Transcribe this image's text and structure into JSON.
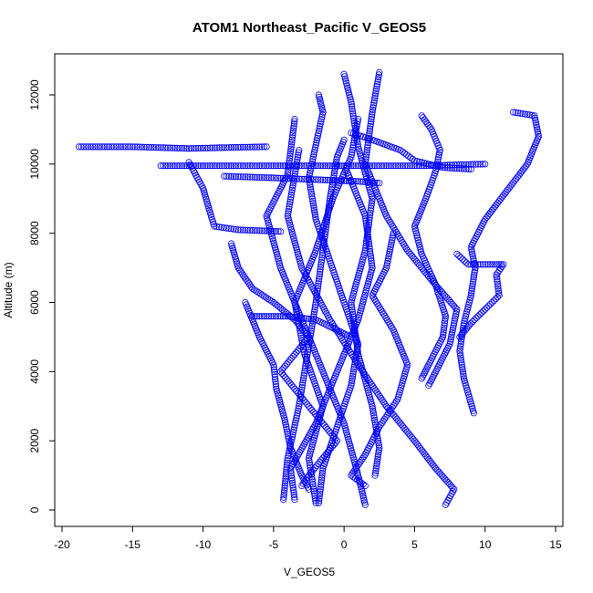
{
  "chart_data": {
    "type": "scatter",
    "title": "ATOM1 Northeast_Pacific V_GEOS5",
    "xlabel": "V_GEOS5",
    "ylabel": "Altitude (m)",
    "xlim": [
      -20,
      15
    ],
    "ylim": [
      0,
      12000
    ],
    "xticks": [
      -20,
      -15,
      -10,
      -5,
      0,
      5,
      10,
      15
    ],
    "yticks": [
      0,
      2000,
      4000,
      6000,
      8000,
      10000,
      12000
    ],
    "marker": "open-circle",
    "color": "#0000ff",
    "grid": false,
    "series": [
      {
        "points": [
          [
            -4.3,
            300
          ],
          [
            -4.0,
            1500
          ],
          [
            -3.2,
            3000
          ],
          [
            -2.6,
            4500
          ],
          [
            -2.0,
            6000
          ],
          [
            -1.5,
            7500
          ],
          [
            -1.0,
            9000
          ],
          [
            -0.5,
            10200
          ],
          [
            0.0,
            10700
          ]
        ]
      },
      {
        "points": [
          [
            -2.0,
            200
          ],
          [
            -2.5,
            1500
          ],
          [
            -1.5,
            3000
          ],
          [
            -2.8,
            4500
          ],
          [
            -3.5,
            6000
          ],
          [
            -2.0,
            7500
          ],
          [
            -0.8,
            9000
          ],
          [
            0.5,
            10200
          ],
          [
            1.0,
            11300
          ]
        ]
      },
      {
        "points": [
          [
            1.5,
            150
          ],
          [
            1.0,
            1000
          ],
          [
            0.0,
            2500
          ],
          [
            -1.5,
            4000
          ],
          [
            -3.0,
            5500
          ],
          [
            -4.5,
            7000
          ],
          [
            -5.5,
            8500
          ],
          [
            -4.0,
            9700
          ],
          [
            -3.5,
            11300
          ]
        ]
      },
      {
        "points": [
          [
            -3.5,
            300
          ],
          [
            -3.8,
            1200
          ],
          [
            -2.0,
            2500
          ],
          [
            -0.5,
            4000
          ],
          [
            1.0,
            5500
          ],
          [
            2.0,
            7000
          ],
          [
            1.5,
            8500
          ],
          [
            0.2,
            9800
          ]
        ]
      },
      {
        "points": [
          [
            7.2,
            150
          ],
          [
            7.8,
            600
          ],
          [
            6.5,
            1200
          ],
          [
            5.0,
            2000
          ],
          [
            3.0,
            3000
          ],
          [
            1.0,
            4200
          ],
          [
            -1.0,
            5500
          ],
          [
            -3.0,
            7000
          ],
          [
            -4.0,
            8500
          ],
          [
            -3.2,
            10400
          ]
        ]
      },
      {
        "points": [
          [
            -1.8,
            200
          ],
          [
            -1.5,
            1200
          ],
          [
            -0.5,
            2400
          ],
          [
            0.5,
            3600
          ],
          [
            1.0,
            4800
          ],
          [
            0.0,
            6000
          ],
          [
            -1.0,
            7200
          ],
          [
            -2.0,
            8400
          ],
          [
            -2.5,
            9600
          ],
          [
            -1.5,
            11500
          ],
          [
            -1.8,
            12000
          ]
        ]
      },
      {
        "points": [
          [
            0.0,
            12600
          ],
          [
            0.5,
            11800
          ],
          [
            1.0,
            10500
          ],
          [
            2.0,
            9000
          ],
          [
            1.5,
            7500
          ],
          [
            0.5,
            6000
          ],
          [
            1.0,
            4500
          ],
          [
            2.0,
            3000
          ],
          [
            2.5,
            1800
          ],
          [
            2.2,
            1000
          ]
        ]
      },
      {
        "points": [
          [
            2.5,
            12650
          ],
          [
            2.0,
            11500
          ],
          [
            1.5,
            10000
          ],
          [
            3.0,
            8500
          ],
          [
            4.5,
            7500
          ],
          [
            6.5,
            6500
          ],
          [
            8.0,
            5800
          ],
          [
            7.5,
            4800
          ],
          [
            6.0,
            3600
          ]
        ]
      },
      {
        "points": [
          [
            12.0,
            11500
          ],
          [
            13.5,
            11400
          ],
          [
            13.8,
            10800
          ],
          [
            13.0,
            10000
          ],
          [
            11.5,
            9200
          ],
          [
            10.0,
            8400
          ],
          [
            9.0,
            7600
          ],
          [
            9.3,
            7000
          ],
          [
            9.0,
            6200
          ],
          [
            8.5,
            5400
          ],
          [
            8.2,
            4600
          ],
          [
            8.5,
            3800
          ],
          [
            9.2,
            2800
          ]
        ]
      },
      {
        "points": [
          [
            5.5,
            11400
          ],
          [
            6.2,
            11000
          ],
          [
            6.8,
            10400
          ],
          [
            6.5,
            9800
          ],
          [
            5.8,
            9000
          ],
          [
            5.0,
            8200
          ],
          [
            5.5,
            7400
          ],
          [
            6.5,
            6500
          ],
          [
            7.2,
            5600
          ],
          [
            7.0,
            5000
          ],
          [
            6.0,
            4200
          ],
          [
            5.5,
            3800
          ]
        ]
      },
      {
        "points": [
          [
            8.0,
            7400
          ],
          [
            8.8,
            7100
          ],
          [
            10.2,
            7100
          ],
          [
            11.3,
            7100
          ],
          [
            10.8,
            6800
          ],
          [
            11.0,
            6200
          ],
          [
            10.0,
            5800
          ],
          [
            9.0,
            5400
          ],
          [
            8.2,
            5000
          ]
        ]
      },
      {
        "points": [
          [
            -18.8,
            10500
          ],
          [
            -15.0,
            10500
          ],
          [
            -11.0,
            10450
          ],
          [
            -8.0,
            10480
          ],
          [
            -5.5,
            10500
          ]
        ]
      },
      {
        "points": [
          [
            -13.0,
            9950
          ],
          [
            -10.0,
            9950
          ],
          [
            -6.0,
            9950
          ],
          [
            -2.0,
            9950
          ],
          [
            2.0,
            9950
          ],
          [
            6.0,
            9950
          ],
          [
            8.0,
            9980
          ],
          [
            10.0,
            10000
          ]
        ]
      },
      {
        "points": [
          [
            -8.5,
            9650
          ],
          [
            -5.0,
            9600
          ],
          [
            -2.0,
            9550
          ],
          [
            1.0,
            9500
          ],
          [
            2.5,
            9450
          ]
        ]
      },
      {
        "points": [
          [
            -11.0,
            10050
          ],
          [
            -10.0,
            9300
          ],
          [
            -9.5,
            8600
          ],
          [
            -9.2,
            8200
          ],
          [
            -7.5,
            8100
          ],
          [
            -4.5,
            8050
          ]
        ]
      },
      {
        "points": [
          [
            -6.5,
            5600
          ],
          [
            -4.0,
            5600
          ],
          [
            -2.0,
            5500
          ],
          [
            -0.5,
            5200
          ],
          [
            0.5,
            5000
          ]
        ]
      },
      {
        "points": [
          [
            -8.0,
            7700
          ],
          [
            -7.5,
            7000
          ],
          [
            -6.5,
            6400
          ],
          [
            -5.0,
            6000
          ],
          [
            -3.5,
            5500
          ],
          [
            -2.5,
            5000
          ],
          [
            -3.5,
            4500
          ],
          [
            -4.5,
            4000
          ],
          [
            -3.5,
            3500
          ],
          [
            -2.5,
            3000
          ],
          [
            -1.5,
            2500
          ],
          [
            -0.5,
            2000
          ],
          [
            -1.5,
            1500
          ],
          [
            -2.5,
            1000
          ],
          [
            -3.0,
            700
          ]
        ]
      },
      {
        "points": [
          [
            0.5,
            10900
          ],
          [
            2.0,
            10700
          ],
          [
            4.0,
            10400
          ],
          [
            5.0,
            10100
          ],
          [
            7.0,
            9900
          ],
          [
            9.0,
            9850
          ]
        ]
      },
      {
        "points": [
          [
            -7.0,
            6000
          ],
          [
            -6.0,
            5000
          ],
          [
            -5.0,
            4200
          ],
          [
            -4.8,
            3500
          ],
          [
            -4.2,
            2600
          ],
          [
            -3.8,
            1800
          ],
          [
            -3.0,
            1000
          ],
          [
            -2.5,
            600
          ]
        ]
      },
      {
        "points": [
          [
            3.5,
            8000
          ],
          [
            3.0,
            7000
          ],
          [
            2.0,
            6200
          ],
          [
            3.5,
            5200
          ],
          [
            4.5,
            4200
          ],
          [
            3.8,
            3200
          ],
          [
            2.5,
            2400
          ],
          [
            1.5,
            1600
          ],
          [
            0.5,
            1000
          ],
          [
            1.5,
            700
          ]
        ]
      }
    ]
  }
}
